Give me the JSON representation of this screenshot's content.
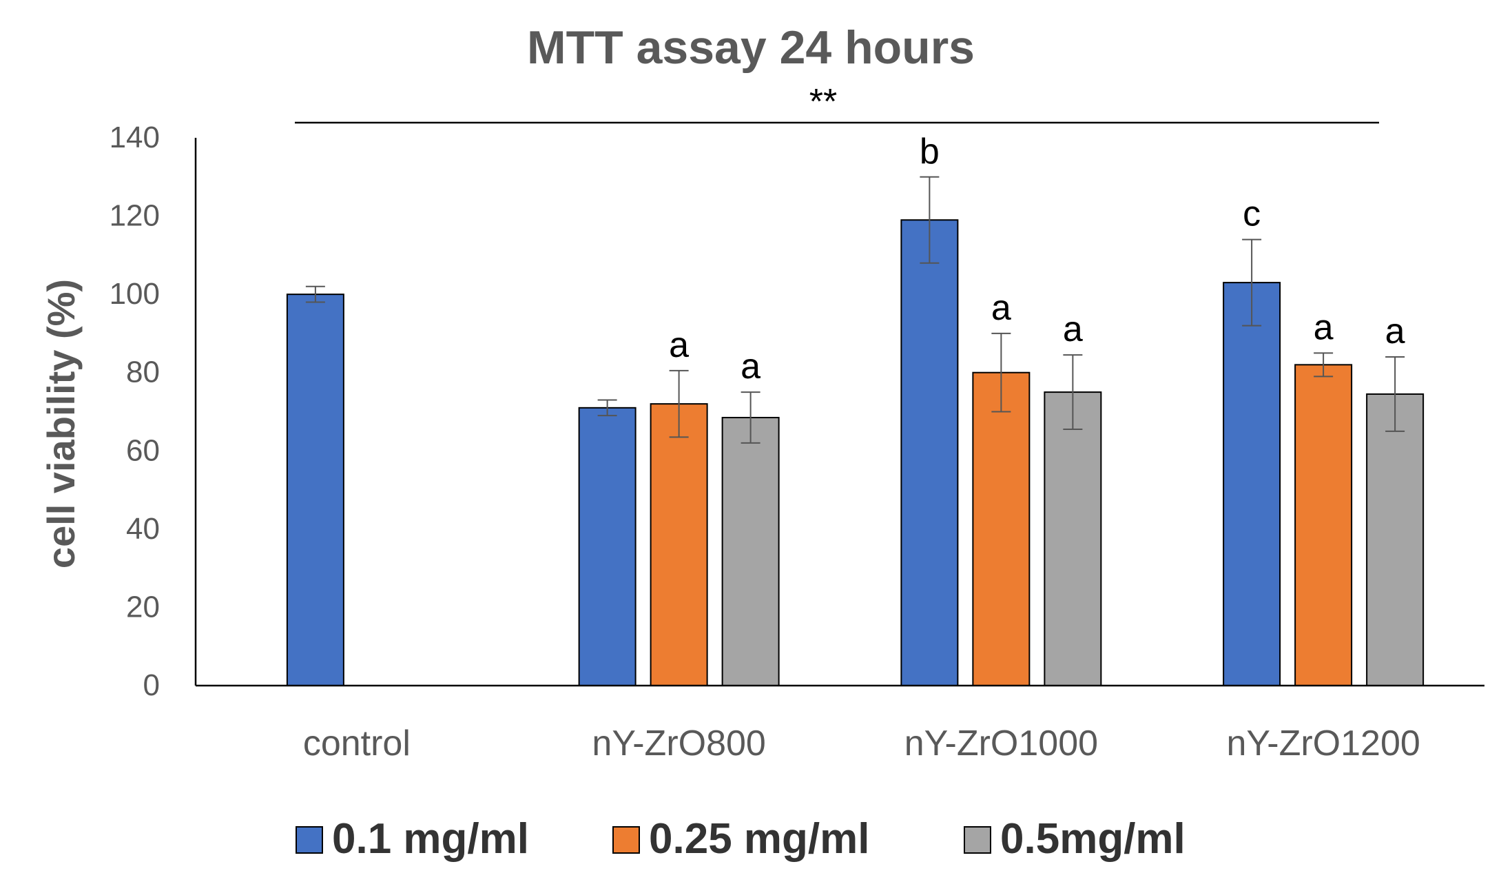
{
  "chart_data": {
    "type": "bar",
    "title": "MTT assay 24 hours",
    "ylabel": "cell viability (%)",
    "xlabel": "",
    "ylim": [
      0,
      140
    ],
    "yticks": [
      0,
      20,
      40,
      60,
      80,
      100,
      120,
      140
    ],
    "categories": [
      "control",
      "nY-ZrO800",
      "nY-ZrO1000",
      "nY-ZrO1200"
    ],
    "significance": "**",
    "legend_position": "bottom",
    "series": [
      {
        "name": "0.1 mg/ml",
        "color": "#4472C4",
        "values": [
          100,
          71,
          119,
          103
        ],
        "errors": [
          2,
          2,
          11,
          11
        ],
        "labels": [
          "",
          "",
          "b",
          "c"
        ]
      },
      {
        "name": "0.25 mg/ml",
        "color": "#ED7D31",
        "values": [
          null,
          72,
          80,
          82
        ],
        "errors": [
          null,
          8.5,
          10,
          3
        ],
        "labels": [
          "",
          "a",
          "a",
          "a"
        ]
      },
      {
        "name": "0.5mg/ml",
        "color": "#A5A5A5",
        "values": [
          null,
          68.5,
          75,
          74.5
        ],
        "errors": [
          null,
          6.5,
          9.5,
          9.5
        ],
        "labels": [
          "",
          "a",
          "a",
          "a"
        ]
      }
    ]
  }
}
